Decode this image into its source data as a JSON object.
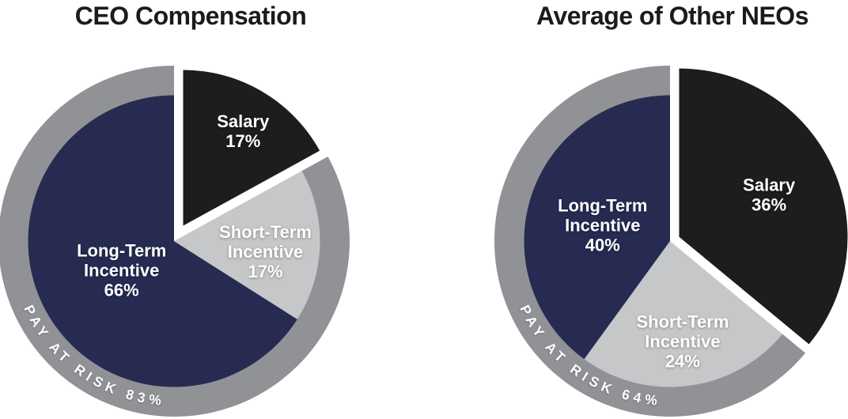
{
  "chart_data": [
    {
      "type": "pie",
      "title": "CEO Compensation",
      "direction": "clockwise",
      "start_angle_deg": 0,
      "slices": [
        {
          "label": "Salary",
          "label_lines": [
            "Salary"
          ],
          "value_pct": 17,
          "display_value": "17%",
          "color": "#1d1d1f",
          "text_color": "#ffffff",
          "exploded": true,
          "at_risk": false
        },
        {
          "label": "Short-Term Incentive",
          "label_lines": [
            "Short-Term",
            "Incentive"
          ],
          "value_pct": 17,
          "display_value": "17%",
          "color": "#c6c7c9",
          "text_color": "#ffffff",
          "exploded": false,
          "at_risk": true
        },
        {
          "label": "Long-Term Incentive",
          "label_lines": [
            "Long-Term",
            "Incentive"
          ],
          "value_pct": 66,
          "display_value": "66%",
          "color": "#272b52",
          "text_color": "#ffffff",
          "exploded": false,
          "at_risk": true
        }
      ],
      "outer_ring": {
        "label": "PAY AT RISK 83%",
        "value_pct": 83,
        "color": "#919296",
        "text_color": "#ffffff",
        "position": "bottom-left-arc"
      }
    },
    {
      "type": "pie",
      "title": "Average of Other NEOs",
      "direction": "clockwise",
      "start_angle_deg": 0,
      "slices": [
        {
          "label": "Salary",
          "label_lines": [
            "Salary"
          ],
          "value_pct": 36,
          "display_value": "36%",
          "color": "#1d1d1f",
          "text_color": "#ffffff",
          "exploded": true,
          "at_risk": false
        },
        {
          "label": "Short-Term Incentive",
          "label_lines": [
            "Short-Term",
            "Incentive"
          ],
          "value_pct": 24,
          "display_value": "24%",
          "color": "#c6c7c9",
          "text_color": "#ffffff",
          "exploded": false,
          "at_risk": true
        },
        {
          "label": "Long-Term Incentive",
          "label_lines": [
            "Long-Term",
            "Incentive"
          ],
          "value_pct": 40,
          "display_value": "40%",
          "color": "#272b52",
          "text_color": "#ffffff",
          "exploded": false,
          "at_risk": true
        }
      ],
      "outer_ring": {
        "label": "PAY AT RISK 64%",
        "value_pct": 64,
        "color": "#919296",
        "text_color": "#ffffff",
        "position": "bottom-left-arc"
      }
    }
  ]
}
